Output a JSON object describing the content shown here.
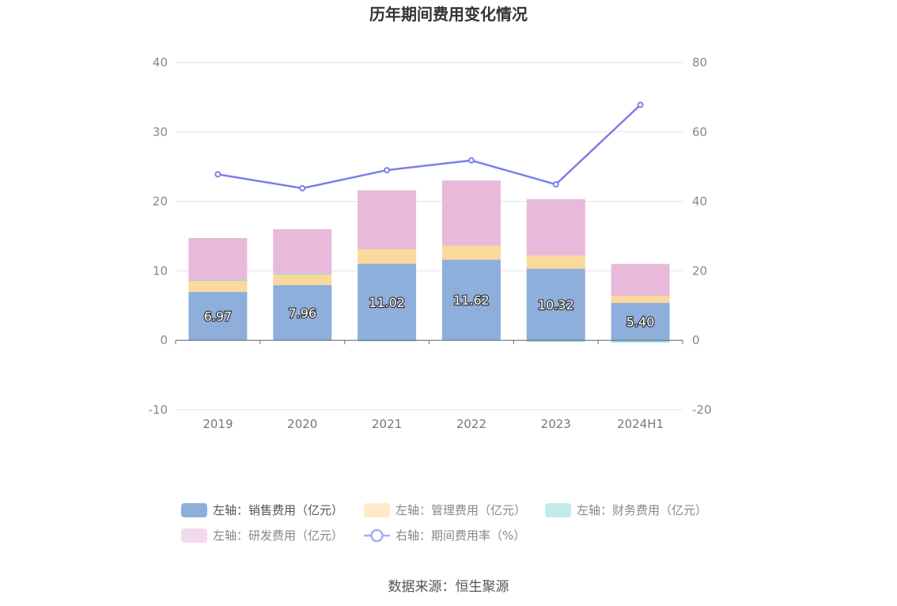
{
  "chart_data": {
    "type": "bar",
    "title": "历年期间费用变化情况",
    "categories": [
      "2019",
      "2020",
      "2021",
      "2022",
      "2023",
      "2024H1"
    ],
    "stacked": true,
    "y_left": {
      "ylim": [
        -10,
        40
      ],
      "ticks": [
        "40",
        "30",
        "20",
        "10",
        "0",
        "-10"
      ]
    },
    "y_right": {
      "ylim": [
        -20,
        80
      ],
      "ticks": [
        "80",
        "60",
        "40",
        "20",
        "0",
        "-20"
      ]
    },
    "grid": true,
    "legend_position": "bottom",
    "series": [
      {
        "name": "左轴：销售费用（亿元）",
        "axis": "left",
        "type": "bar",
        "color": "#8eaedb",
        "values": [
          6.97,
          7.96,
          11.02,
          11.62,
          10.32,
          5.4
        ],
        "labels": [
          "6.97",
          "7.96",
          "11.02",
          "11.62",
          "10.32",
          "5.40"
        ]
      },
      {
        "name": "左轴：管理费用（亿元）",
        "axis": "left",
        "type": "bar",
        "color": "#fcd89d",
        "values": [
          1.6,
          1.6,
          2.1,
          2.0,
          1.9,
          1.0
        ]
      },
      {
        "name": "左轴：财务费用（亿元）",
        "axis": "left",
        "type": "bar",
        "color": "#8fd9d5",
        "values": [
          0.15,
          0.05,
          -0.05,
          0.0,
          -0.2,
          -0.3
        ]
      },
      {
        "name": "左轴：研发费用（亿元）",
        "axis": "left",
        "type": "bar",
        "color": "#e8b9da",
        "values": [
          6.0,
          6.4,
          8.5,
          9.4,
          8.1,
          4.6
        ]
      },
      {
        "name": "右轴：期间费用率（%）",
        "axis": "right",
        "type": "line",
        "color": "#7b7fe8",
        "values": [
          47.8,
          43.8,
          49.0,
          51.8,
          44.9,
          67.8
        ]
      }
    ],
    "source": "数据来源：恒生聚源"
  }
}
